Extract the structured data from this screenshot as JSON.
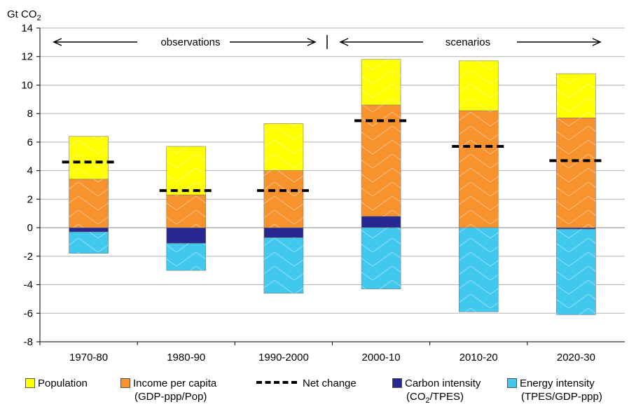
{
  "chart_data": {
    "type": "bar",
    "stacked": true,
    "ylabel": "Gt CO",
    "ylabel_subscript": "2",
    "ylim": [
      -8,
      14
    ],
    "yticks": [
      "14",
      "12",
      "10",
      "8",
      "6",
      "4",
      "2",
      "0",
      "-2",
      "-4",
      "-6",
      "-8"
    ],
    "grid": true,
    "legend_position": "bottom",
    "categories": [
      "1970-80",
      "1980-90",
      "1990-2000",
      "2000-10",
      "2010-20",
      "2020-30"
    ],
    "series": [
      {
        "name": "Population",
        "color": "#ffff00",
        "values": [
          3.0,
          3.4,
          3.3,
          3.2,
          3.5,
          3.1
        ]
      },
      {
        "name": "Income per capita",
        "name_line2": "(GDP-ppp/Pop)",
        "color": "#f7922d",
        "values": [
          3.4,
          2.3,
          4.0,
          7.8,
          8.2,
          7.7
        ]
      },
      {
        "name": "Carbon intensity",
        "name_line2": "(CO2/TPES)",
        "color": "#27288f",
        "values": [
          -0.3,
          -1.1,
          -0.7,
          0.8,
          0.0,
          -0.1
        ]
      },
      {
        "name": "Energy intensity",
        "name_line2": "(TPES/GDP-ppp)",
        "color": "#40c8ef",
        "values": [
          -1.5,
          -1.9,
          -3.9,
          -4.3,
          -5.9,
          -6.0
        ]
      }
    ],
    "net_change": {
      "name": "Net change",
      "values": [
        4.6,
        2.6,
        2.6,
        7.5,
        5.7,
        4.7
      ]
    },
    "annotations": {
      "observations": "observations",
      "scenarios": "scenarios"
    }
  },
  "legend": {
    "population": "Population",
    "income": "Income per capita",
    "income_sub": "(GDP-ppp/Pop)",
    "net": "Net change",
    "carbon": "Carbon intensity",
    "carbon_sub_a": "(CO",
    "carbon_sub_b": "2",
    "carbon_sub_c": "/TPES)",
    "energy": "Energy intensity",
    "energy_sub": "(TPES/GDP-ppp)"
  }
}
